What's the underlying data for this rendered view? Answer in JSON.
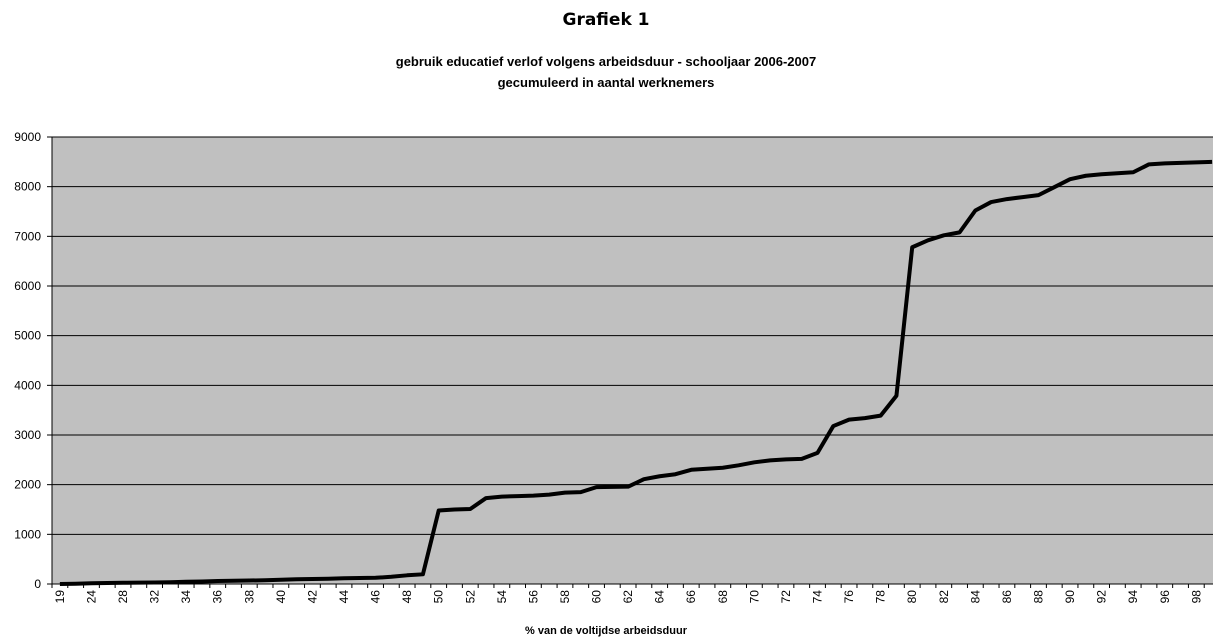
{
  "chart_data": {
    "type": "line",
    "title": "Grafiek 1",
    "subtitle": [
      "gebruik educatief verlof volgens arbeidsduur - schooljaar 2006-2007",
      "gecumuleerd in aantal werknemers"
    ],
    "x_label": "% van de voltijdse arbeidsduur",
    "categories": [
      "19",
      null,
      "24",
      null,
      "28",
      null,
      "32",
      null,
      "34",
      null,
      "36",
      null,
      "38",
      null,
      "40",
      null,
      "42",
      null,
      "44",
      null,
      "46",
      null,
      "48",
      null,
      "50",
      null,
      "52",
      null,
      "54",
      null,
      "56",
      null,
      "58",
      null,
      "60",
      null,
      "62",
      null,
      "64",
      null,
      "66",
      null,
      "68",
      null,
      "70",
      null,
      "72",
      null,
      "74",
      null,
      "76",
      null,
      "78",
      null,
      "80",
      null,
      "82",
      null,
      "84",
      null,
      "86",
      null,
      "88",
      null,
      "90",
      null,
      "92",
      null,
      "94",
      null,
      "96",
      null,
      "98",
      null
    ],
    "series": [
      {
        "name": "gecumuleerd",
        "color": "#000000",
        "values": [
          0,
          5,
          15,
          20,
          25,
          28,
          30,
          35,
          45,
          50,
          60,
          65,
          70,
          75,
          85,
          95,
          100,
          105,
          115,
          120,
          125,
          145,
          175,
          195,
          1480,
          1500,
          1510,
          1730,
          1760,
          1770,
          1780,
          1800,
          1840,
          1850,
          1950,
          1955,
          1960,
          2110,
          2170,
          2210,
          2300,
          2320,
          2340,
          2390,
          2450,
          2490,
          2510,
          2520,
          2640,
          3180,
          3310,
          3340,
          3390,
          3790,
          6780,
          6920,
          7020,
          7080,
          7520,
          7690,
          7750,
          7790,
          7830,
          7990,
          8150,
          8220,
          8250,
          8270,
          8290,
          8450,
          8470,
          8480,
          8490,
          8500
        ]
      }
    ],
    "ylim": [
      0,
      9000
    ],
    "yticks": [
      0,
      1000,
      2000,
      3000,
      4000,
      5000,
      6000,
      7000,
      8000,
      9000
    ],
    "grid": true,
    "plot_background": "#c0c0c0"
  }
}
